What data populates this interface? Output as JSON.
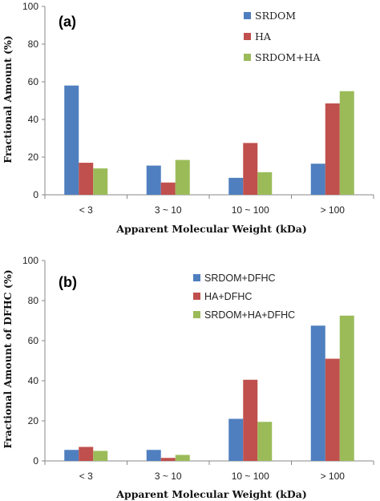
{
  "colors": [
    "#4f7fbf",
    "#c0504d",
    "#9bbb59"
  ],
  "chart_data": [
    {
      "type": "bar",
      "panel_label": "(a)",
      "categories": [
        "< 3",
        "3 ~ 10",
        "10 ~ 100",
        "> 100"
      ],
      "series": [
        {
          "name": "SRDOM",
          "values": [
            58,
            15.5,
            9,
            16.5
          ]
        },
        {
          "name": "HA",
          "values": [
            17,
            6.5,
            27.5,
            48.5
          ]
        },
        {
          "name": "SRDOM+HA",
          "values": [
            14,
            18.5,
            12,
            55
          ]
        }
      ],
      "xlabel": "Apparent Molecular Weight (kDa)",
      "ylabel": "Fractional  Amount (%)",
      "ylim": [
        0,
        100
      ],
      "yticks": [
        "0",
        "20",
        "40",
        "60",
        "80",
        "100"
      ],
      "grid": false,
      "legend_position": "top-right"
    },
    {
      "type": "bar",
      "panel_label": "(b)",
      "categories": [
        "< 3",
        "3 ~ 10",
        "10 ~ 100",
        "> 100"
      ],
      "series": [
        {
          "name": "SRDOM+DFHC",
          "values": [
            5.5,
            5.5,
            21,
            67.5
          ]
        },
        {
          "name": "HA+DFHC",
          "values": [
            7,
            1.5,
            40.5,
            51
          ]
        },
        {
          "name": "SRDOM+HA+DFHC",
          "values": [
            5,
            3,
            19.5,
            72.5
          ]
        }
      ],
      "xlabel": "Apparent Molecular Weight (kDa)",
      "ylabel": "Fractional  Amount of DFHC (%)",
      "ylim": [
        0,
        100
      ],
      "yticks": [
        "0",
        "20",
        "40",
        "60",
        "80",
        "100"
      ],
      "grid": false,
      "legend_position": "top-left"
    }
  ]
}
